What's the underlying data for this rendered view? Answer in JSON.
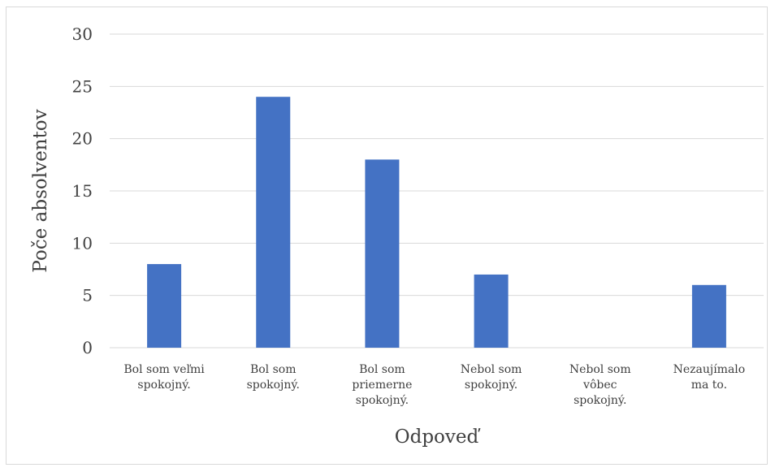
{
  "chart_data": {
    "type": "bar",
    "categories": [
      [
        "Bol som veľmi",
        "spokojný."
      ],
      [
        "Bol som",
        "spokojný."
      ],
      [
        "Bol som",
        "priemerne",
        "spokojný."
      ],
      [
        "Nebol som",
        "spokojný."
      ],
      [
        "Nebol som",
        "vôbec",
        "spokojný."
      ],
      [
        "Nezaujímalo",
        "ma to."
      ]
    ],
    "values": [
      8,
      24,
      18,
      7,
      0,
      6
    ],
    "xlabel": "Odpoveď",
    "ylabel": "Poče absolventov",
    "ylim": [
      0,
      30
    ],
    "yticks": [
      0,
      5,
      10,
      15,
      20,
      25,
      30
    ],
    "grid": true,
    "bar_color": "#4472c4",
    "grid_color": "#d9d9d9"
  }
}
